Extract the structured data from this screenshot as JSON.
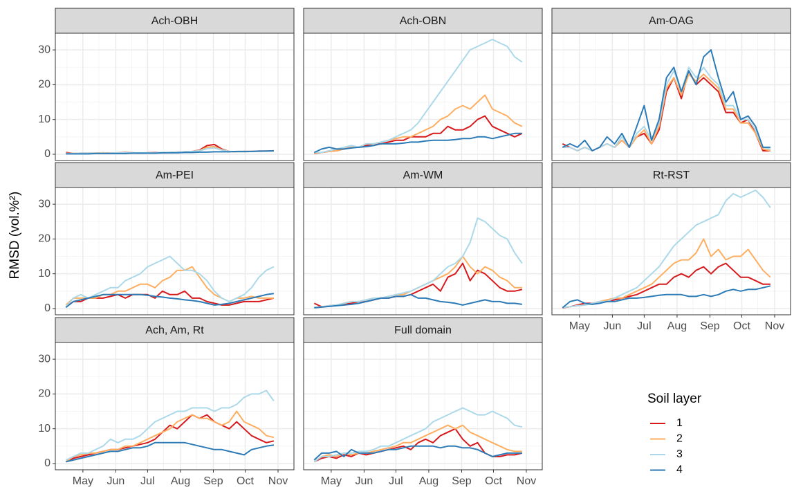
{
  "chart_data": {
    "type": "line",
    "y_label": "RMSD (vol.%²)",
    "legend_title": "Soil layer",
    "x": [
      105,
      112,
      119,
      126,
      133,
      140,
      147,
      154,
      161,
      168,
      175,
      182,
      189,
      196,
      203,
      210,
      217,
      224,
      231,
      238,
      245,
      252,
      259,
      266,
      273,
      280,
      287,
      294,
      301
    ],
    "xlim": [
      95,
      320
    ],
    "xticks": [
      {
        "value": 121,
        "label": "May"
      },
      {
        "value": 152,
        "label": "Jun"
      },
      {
        "value": 182,
        "label": "Jul"
      },
      {
        "value": 213,
        "label": "Aug"
      },
      {
        "value": 244,
        "label": "Sep"
      },
      {
        "value": 274,
        "label": "Oct"
      },
      {
        "value": 305,
        "label": "Nov"
      }
    ],
    "xminorticks": [
      106,
      136,
      167,
      197,
      228,
      259,
      289
    ],
    "ylim": [
      -1.8,
      34.8
    ],
    "yticks": [
      0,
      10,
      20,
      30
    ],
    "yminorticks": [
      5,
      15,
      25
    ],
    "grid": true,
    "series": [
      {
        "name": "1",
        "color": "#d7191c"
      },
      {
        "name": "2",
        "color": "#fdae61"
      },
      {
        "name": "3",
        "color": "#abd9e9"
      },
      {
        "name": "4",
        "color": "#2c7bb6"
      }
    ],
    "panels": [
      {
        "title": "Ach-OBH",
        "values": [
          [
            0.5,
            0.2,
            0.3,
            0.3,
            0.3,
            0.4,
            0.3,
            0.4,
            0.5,
            0.4,
            0.3,
            0.4,
            0.5,
            0.4,
            0.5,
            0.6,
            0.7,
            0.8,
            1.2,
            2.5,
            2.8,
            1.5,
            0.8,
            0.7,
            0.8,
            0.8,
            0.9,
            0.9,
            1.0
          ],
          [
            0.3,
            0.2,
            0.3,
            0.3,
            0.3,
            0.4,
            0.3,
            0.4,
            0.4,
            0.4,
            0.3,
            0.4,
            0.4,
            0.4,
            0.5,
            0.6,
            0.7,
            0.8,
            1.1,
            2.0,
            2.2,
            1.3,
            0.8,
            0.7,
            0.7,
            0.8,
            0.8,
            0.9,
            0.9
          ],
          [
            0.2,
            0.2,
            0.3,
            0.3,
            0.3,
            0.3,
            0.3,
            0.4,
            0.4,
            0.4,
            0.4,
            0.4,
            0.4,
            0.5,
            0.5,
            0.6,
            0.7,
            0.8,
            1.0,
            1.6,
            1.8,
            1.2,
            0.8,
            0.7,
            0.7,
            0.8,
            0.8,
            0.9,
            0.9
          ],
          [
            0.1,
            0.1,
            0.1,
            0.1,
            0.2,
            0.2,
            0.2,
            0.2,
            0.2,
            0.3,
            0.3,
            0.3,
            0.3,
            0.4,
            0.4,
            0.4,
            0.5,
            0.5,
            0.6,
            0.6,
            0.7,
            0.7,
            0.7,
            0.8,
            0.8,
            0.8,
            0.9,
            0.9,
            1.0
          ]
        ]
      },
      {
        "title": "Ach-OBN",
        "values": [
          [
            0.2,
            0.5,
            0.8,
            1,
            1.5,
            2,
            2,
            2.5,
            3,
            3,
            3.5,
            4,
            4,
            5,
            5,
            5,
            6,
            6,
            8,
            7,
            7,
            8,
            10,
            11,
            8,
            7,
            6,
            5,
            6
          ],
          [
            0.3,
            0.5,
            0.8,
            1,
            1.5,
            2,
            2,
            3,
            3,
            3.5,
            4,
            4.5,
            5,
            5,
            6,
            7,
            8,
            10,
            11,
            13,
            14,
            13,
            15,
            17,
            13,
            12,
            11,
            9,
            8
          ],
          [
            0.5,
            0.5,
            1,
            1.5,
            2,
            2.5,
            2,
            3,
            3,
            3.5,
            4,
            5,
            6,
            7,
            9,
            12,
            15,
            18,
            21,
            24,
            27,
            30,
            31,
            32,
            33,
            32,
            31,
            28,
            26.5
          ],
          [
            0.5,
            1.5,
            2,
            1.5,
            1.5,
            1.8,
            2,
            2.2,
            2.5,
            3,
            3,
            3,
            3.2,
            3.5,
            3.5,
            3.8,
            4,
            4,
            4,
            4.2,
            4.5,
            4.5,
            5,
            5,
            4.5,
            5,
            5.5,
            6,
            6
          ]
        ]
      },
      {
        "title": "Am-OAG",
        "values": [
          [
            3,
            2,
            1,
            2,
            1,
            2,
            3,
            2,
            4,
            2,
            5,
            6,
            3,
            7,
            18,
            22,
            16,
            24,
            20,
            22,
            20,
            18,
            12,
            12,
            9,
            10,
            6,
            1,
            1
          ],
          [
            2,
            2,
            1,
            2,
            1,
            2,
            3,
            2,
            4,
            2,
            5,
            7,
            3,
            8,
            19,
            22,
            17,
            23,
            21,
            23,
            21,
            19,
            13,
            13,
            9,
            9,
            6,
            1.5,
            1
          ],
          [
            2,
            2,
            1,
            2,
            1,
            2,
            3,
            2,
            5,
            2,
            6,
            8,
            4,
            9,
            20,
            24,
            18,
            25,
            22,
            25,
            22,
            20,
            14,
            14,
            10,
            10,
            7,
            2,
            1.5
          ],
          [
            2,
            3,
            2,
            4,
            1,
            2,
            5,
            3,
            6,
            2,
            8,
            14,
            4,
            10,
            22,
            25,
            18,
            24,
            20,
            28,
            30,
            22,
            15,
            18,
            10,
            11,
            8,
            2,
            2
          ]
        ]
      },
      {
        "title": "Am-PEI",
        "values": [
          [
            0.5,
            2,
            2,
            3,
            3,
            3,
            3.5,
            4,
            3,
            4,
            4,
            4,
            3,
            5,
            4,
            4,
            5,
            3,
            3,
            2,
            1.5,
            1,
            1,
            1.5,
            2,
            2,
            2,
            2.5,
            3
          ],
          [
            1,
            3,
            3,
            3,
            3,
            4,
            4,
            5,
            5,
            6,
            7,
            7,
            6,
            8,
            9,
            11,
            11,
            12,
            9,
            6,
            4,
            3,
            2,
            3,
            3,
            3.5,
            3,
            3,
            3
          ],
          [
            0.5,
            3,
            4,
            3,
            4,
            5,
            6,
            6,
            8,
            9,
            10,
            12,
            13,
            14,
            15,
            13,
            11,
            11,
            10,
            8,
            5,
            3,
            2,
            3,
            4,
            6,
            9,
            11,
            12
          ],
          [
            0.3,
            2,
            2.5,
            3,
            3.5,
            4,
            4,
            4,
            4,
            4,
            4,
            3.8,
            3.5,
            3.3,
            3,
            2.8,
            2.5,
            2.3,
            2,
            1.5,
            1,
            1.2,
            1.5,
            2,
            2.5,
            3,
            3.5,
            4,
            4.3
          ]
        ]
      },
      {
        "title": "Am-WM",
        "values": [
          [
            1.5,
            0.5,
            0.8,
            1,
            1.2,
            1.5,
            2,
            2,
            2.5,
            3,
            3,
            3.5,
            3.5,
            4,
            5,
            6,
            7,
            5,
            9,
            10,
            13,
            8,
            11,
            10,
            8,
            6,
            5,
            5,
            5.5
          ],
          [
            0.3,
            0.5,
            0.8,
            1,
            1.5,
            2,
            2,
            2.5,
            3,
            3,
            3.5,
            4,
            4,
            5,
            6,
            7,
            8,
            9,
            10,
            12,
            15,
            12,
            10,
            12,
            11,
            9,
            8,
            6,
            6
          ],
          [
            0.3,
            0.5,
            0.8,
            1,
            1.5,
            2,
            2,
            2.5,
            3,
            3,
            3.5,
            4,
            4.5,
            5,
            6,
            7,
            8,
            10,
            12,
            13,
            15,
            19,
            26,
            25,
            23,
            21,
            20,
            16,
            13
          ],
          [
            0.2,
            0.4,
            0.6,
            0.8,
            1,
            1.2,
            1.5,
            2,
            2.5,
            3,
            3,
            3.5,
            3.5,
            4,
            3,
            3,
            2.5,
            2,
            1.8,
            1.5,
            1,
            1.5,
            2,
            2.5,
            2,
            2,
            1.5,
            1.5,
            1.2
          ]
        ]
      },
      {
        "title": "Rt-RST",
        "values": [
          [
            0.2,
            0.5,
            1,
            1.5,
            1.5,
            2,
            2,
            2.5,
            3,
            3.5,
            4,
            5,
            6,
            7,
            7,
            9,
            10,
            9,
            11,
            12,
            10,
            12,
            13,
            11,
            9,
            9,
            8,
            7,
            7
          ],
          [
            0.3,
            0.5,
            0.8,
            1,
            1.5,
            2,
            2.5,
            3,
            3,
            4,
            5,
            6,
            7,
            9,
            11,
            13,
            14,
            14,
            16,
            20,
            15,
            17,
            14,
            15,
            15,
            17,
            14,
            11,
            9
          ],
          [
            0.3,
            0.5,
            0.8,
            1,
            1.5,
            2,
            2,
            3,
            4,
            5,
            6,
            8,
            10,
            12,
            15,
            18,
            20,
            22,
            24,
            25,
            26,
            27,
            31,
            33,
            32,
            33,
            34,
            32,
            29
          ],
          [
            0.2,
            2,
            2.5,
            1.5,
            1.2,
            1.5,
            2,
            2,
            2.5,
            3,
            3,
            3.2,
            3.5,
            3.8,
            4,
            4,
            4,
            3.5,
            3.5,
            4,
            3.5,
            4,
            5,
            5.5,
            5,
            5.5,
            5.5,
            6,
            6.5
          ]
        ]
      },
      {
        "title": "Ach, Am, Rt",
        "values": [
          [
            0.5,
            1.5,
            2,
            2.5,
            3,
            3.5,
            4,
            4,
            4.5,
            5,
            5.5,
            6,
            7,
            9,
            11,
            10,
            12,
            14,
            13,
            14,
            12,
            11,
            10,
            12,
            10,
            8,
            7,
            6,
            6.5
          ],
          [
            0.5,
            2,
            2.5,
            3,
            3,
            3.5,
            4,
            4,
            5,
            5,
            6,
            7,
            8,
            9,
            10,
            12,
            13,
            14,
            13,
            13,
            12,
            11,
            12,
            15,
            12,
            11,
            10,
            8,
            7.5
          ],
          [
            1,
            2,
            3,
            3,
            4,
            5,
            7,
            6,
            7,
            7,
            8,
            10,
            12,
            13,
            14,
            15,
            15,
            16,
            16,
            16,
            15,
            16,
            16,
            17,
            19,
            20,
            20,
            21,
            18
          ],
          [
            0.5,
            1,
            1.5,
            2,
            2.5,
            3,
            3.5,
            3.5,
            4,
            4.5,
            4.5,
            5,
            6,
            6,
            6,
            6,
            6,
            5.5,
            5,
            4.5,
            4,
            4,
            3.5,
            3,
            2.5,
            4,
            4.5,
            5,
            5.3
          ]
        ]
      },
      {
        "title": "Full domain",
        "values": [
          [
            0.5,
            1.5,
            2,
            1.5,
            2.5,
            2,
            3,
            2.5,
            3,
            3.5,
            4,
            4.5,
            5,
            4,
            6,
            7,
            6,
            8,
            9,
            10,
            7,
            5,
            6,
            3,
            2,
            2,
            2.5,
            2.5,
            3
          ],
          [
            0.5,
            2,
            2.5,
            2,
            3,
            2.5,
            3,
            3,
            3.5,
            4,
            4.5,
            5,
            6,
            6,
            7,
            8,
            9,
            10,
            11,
            10,
            11,
            9,
            8,
            7,
            6,
            5,
            4,
            3.5,
            3.5
          ],
          [
            0.5,
            2,
            2,
            2.5,
            3,
            3,
            3.5,
            3.5,
            4,
            5,
            5,
            6,
            7,
            8,
            9,
            10,
            12,
            13,
            14,
            15,
            16,
            15,
            14,
            14,
            15,
            14,
            13,
            11,
            10.5
          ],
          [
            1,
            3,
            3,
            3.5,
            2,
            4,
            3,
            3,
            3,
            3.5,
            4,
            4,
            4.5,
            5,
            5,
            5,
            5,
            4.5,
            5,
            5,
            4.5,
            4.5,
            4,
            3,
            2,
            2.5,
            3,
            3,
            3
          ]
        ]
      }
    ]
  }
}
